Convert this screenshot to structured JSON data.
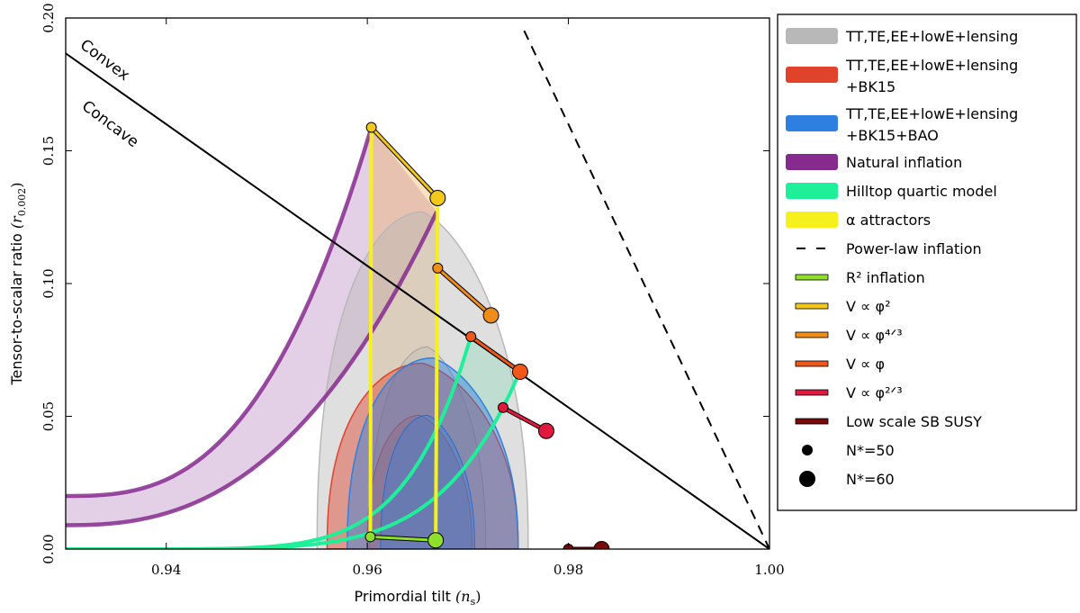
{
  "chart_data": {
    "type": "scatter",
    "xlabel": "Primordial tilt",
    "xlabel_symbol": "(n",
    "xlabel_sub": "s",
    "xlabel_end": ")",
    "ylabel": "Tensor-to-scalar ratio",
    "ylabel_symbol": "(r",
    "ylabel_sub": "0.002",
    "ylabel_end": ")",
    "xlim": [
      0.93,
      1.0
    ],
    "ylim": [
      0.0,
      0.2
    ],
    "xticks": [
      0.94,
      0.96,
      0.98,
      1.0
    ],
    "xtick_labels": [
      "0.94",
      "0.96",
      "0.98",
      "1.00"
    ],
    "yticks": [
      0.0,
      0.05,
      0.1,
      0.15,
      0.2
    ],
    "ytick_labels": [
      "0.00",
      "0.05",
      "0.10",
      "0.15",
      "0.20"
    ],
    "annotations": [
      "Convex",
      "Concave"
    ],
    "colors": {
      "planck": "#b8b8b8",
      "bk15": "#e0422a",
      "bao": "#2e80e0",
      "natural": "#862a8e",
      "hilltop": "#1ef09a",
      "alpha": "#f6f01c",
      "powerlaw": "#000000",
      "r2": "#8fe02a",
      "phi2": "#f2c81a",
      "phi43": "#f08c18",
      "phi1": "#f0581a",
      "phi23": "#e01a3e",
      "susy": "#7a0a0a"
    },
    "contours": [
      {
        "name": "TT,TE,EE+lowE+lensing",
        "center": [
          0.9655,
          0.0
        ],
        "half_width": 0.0105,
        "peak": 0.127,
        "color_key": "planck"
      },
      {
        "name": "TT,TE,EE+lowE+lensing+BK15",
        "center": [
          0.9655,
          0.0
        ],
        "half_width": 0.0095,
        "peak": 0.07,
        "color_key": "bk15"
      },
      {
        "name": "TT,TE,EE+lowE+lensing+BK15+BAO",
        "center": [
          0.9665,
          0.0
        ],
        "half_width": 0.0085,
        "peak": 0.072,
        "color_key": "bao"
      }
    ],
    "model_segments": [
      {
        "name": "R^2 inflation",
        "n50": [
          0.9603,
          0.0046
        ],
        "n60": [
          0.9668,
          0.0033
        ],
        "color_key": "r2"
      },
      {
        "name": "V ∝ φ^2",
        "n50": [
          0.9604,
          0.1588
        ],
        "n60": [
          0.967,
          0.1322
        ],
        "color_key": "phi2"
      },
      {
        "name": "V ∝ φ^4/3",
        "n50": [
          0.967,
          0.1058
        ],
        "n60": [
          0.9723,
          0.088
        ],
        "color_key": "phi43"
      },
      {
        "name": "V ∝ φ",
        "n50": [
          0.9703,
          0.08
        ],
        "n60": [
          0.9752,
          0.0668
        ],
        "color_key": "phi1"
      },
      {
        "name": "V ∝ φ^2/3",
        "n50": [
          0.9735,
          0.0533
        ],
        "n60": [
          0.9778,
          0.0445
        ],
        "color_key": "phi23"
      },
      {
        "name": "Low scale SB SUSY",
        "n50": [
          0.98,
          0.0
        ],
        "n60": [
          0.9833,
          0.0
        ],
        "color_key": "susy"
      }
    ],
    "legend": [
      {
        "kind": "patch",
        "lines": [
          "TT,TE,EE+lowE+lensing"
        ],
        "color_key": "planck"
      },
      {
        "kind": "patch",
        "lines": [
          "TT,TE,EE+lowE+lensing",
          "+BK15"
        ],
        "color_key": "bk15"
      },
      {
        "kind": "patch",
        "lines": [
          "TT,TE,EE+lowE+lensing",
          "+BK15+BAO"
        ],
        "color_key": "bao"
      },
      {
        "kind": "patch",
        "lines": [
          "Natural inflation"
        ],
        "color_key": "natural"
      },
      {
        "kind": "patch",
        "lines": [
          "Hilltop quartic model"
        ],
        "color_key": "hilltop"
      },
      {
        "kind": "patch",
        "lines": [
          "α attractors"
        ],
        "color_key": "alpha"
      },
      {
        "kind": "dash",
        "lines": [
          "Power-law inflation"
        ],
        "color_key": "powerlaw"
      },
      {
        "kind": "line",
        "lines": [
          "R² inflation"
        ],
        "color_key": "r2"
      },
      {
        "kind": "line",
        "lines": [
          "V ∝ φ²"
        ],
        "color_key": "phi2"
      },
      {
        "kind": "line",
        "lines": [
          "V ∝ φ⁴ᐟ³"
        ],
        "color_key": "phi43"
      },
      {
        "kind": "line",
        "lines": [
          "V ∝ φ"
        ],
        "color_key": "phi1"
      },
      {
        "kind": "line",
        "lines": [
          "V ∝ φ²ᐟ³"
        ],
        "color_key": "phi23"
      },
      {
        "kind": "line",
        "lines": [
          "Low scale SB SUSY"
        ],
        "color_key": "susy"
      },
      {
        "kind": "dot-small",
        "lines": [
          "N*=50"
        ],
        "color_key": "powerlaw"
      },
      {
        "kind": "dot-large",
        "lines": [
          "N*=60"
        ],
        "color_key": "powerlaw"
      }
    ]
  }
}
